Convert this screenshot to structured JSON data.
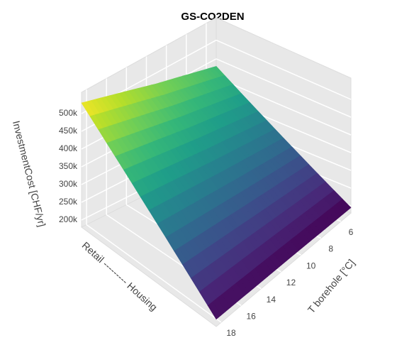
{
  "chart_data": {
    "type": "surface",
    "title": "GS-CO2DEN",
    "xlabel": "T borehole [°C]",
    "ylabel": "Retail --------- Housing",
    "zlabel": "InvestmentCost [CHF/yr]",
    "x": [
      5,
      11,
      18.5
    ],
    "z": [
      [
        430000,
        470000,
        530000
      ],
      [
        195000,
        198000,
        200000
      ]
    ],
    "xlim": [
      5,
      18.5
    ],
    "xticks": [
      6,
      8,
      10,
      12,
      14,
      16,
      18
    ],
    "zlim": [
      180000,
      560000
    ],
    "zticks": [
      {
        "value": 200000,
        "label": "200k"
      },
      {
        "value": 250000,
        "label": "250k"
      },
      {
        "value": 300000,
        "label": "300k"
      },
      {
        "value": 350000,
        "label": "350k"
      },
      {
        "value": 400000,
        "label": "400k"
      },
      {
        "value": 450000,
        "label": "450k"
      },
      {
        "value": 500000,
        "label": "500k"
      }
    ],
    "grid": true,
    "colorscale": [
      "#440154",
      "#482878",
      "#3e4989",
      "#31688e",
      "#26828e",
      "#1f9e89",
      "#35b779",
      "#6ece58",
      "#b5de2b",
      "#fde725"
    ]
  }
}
